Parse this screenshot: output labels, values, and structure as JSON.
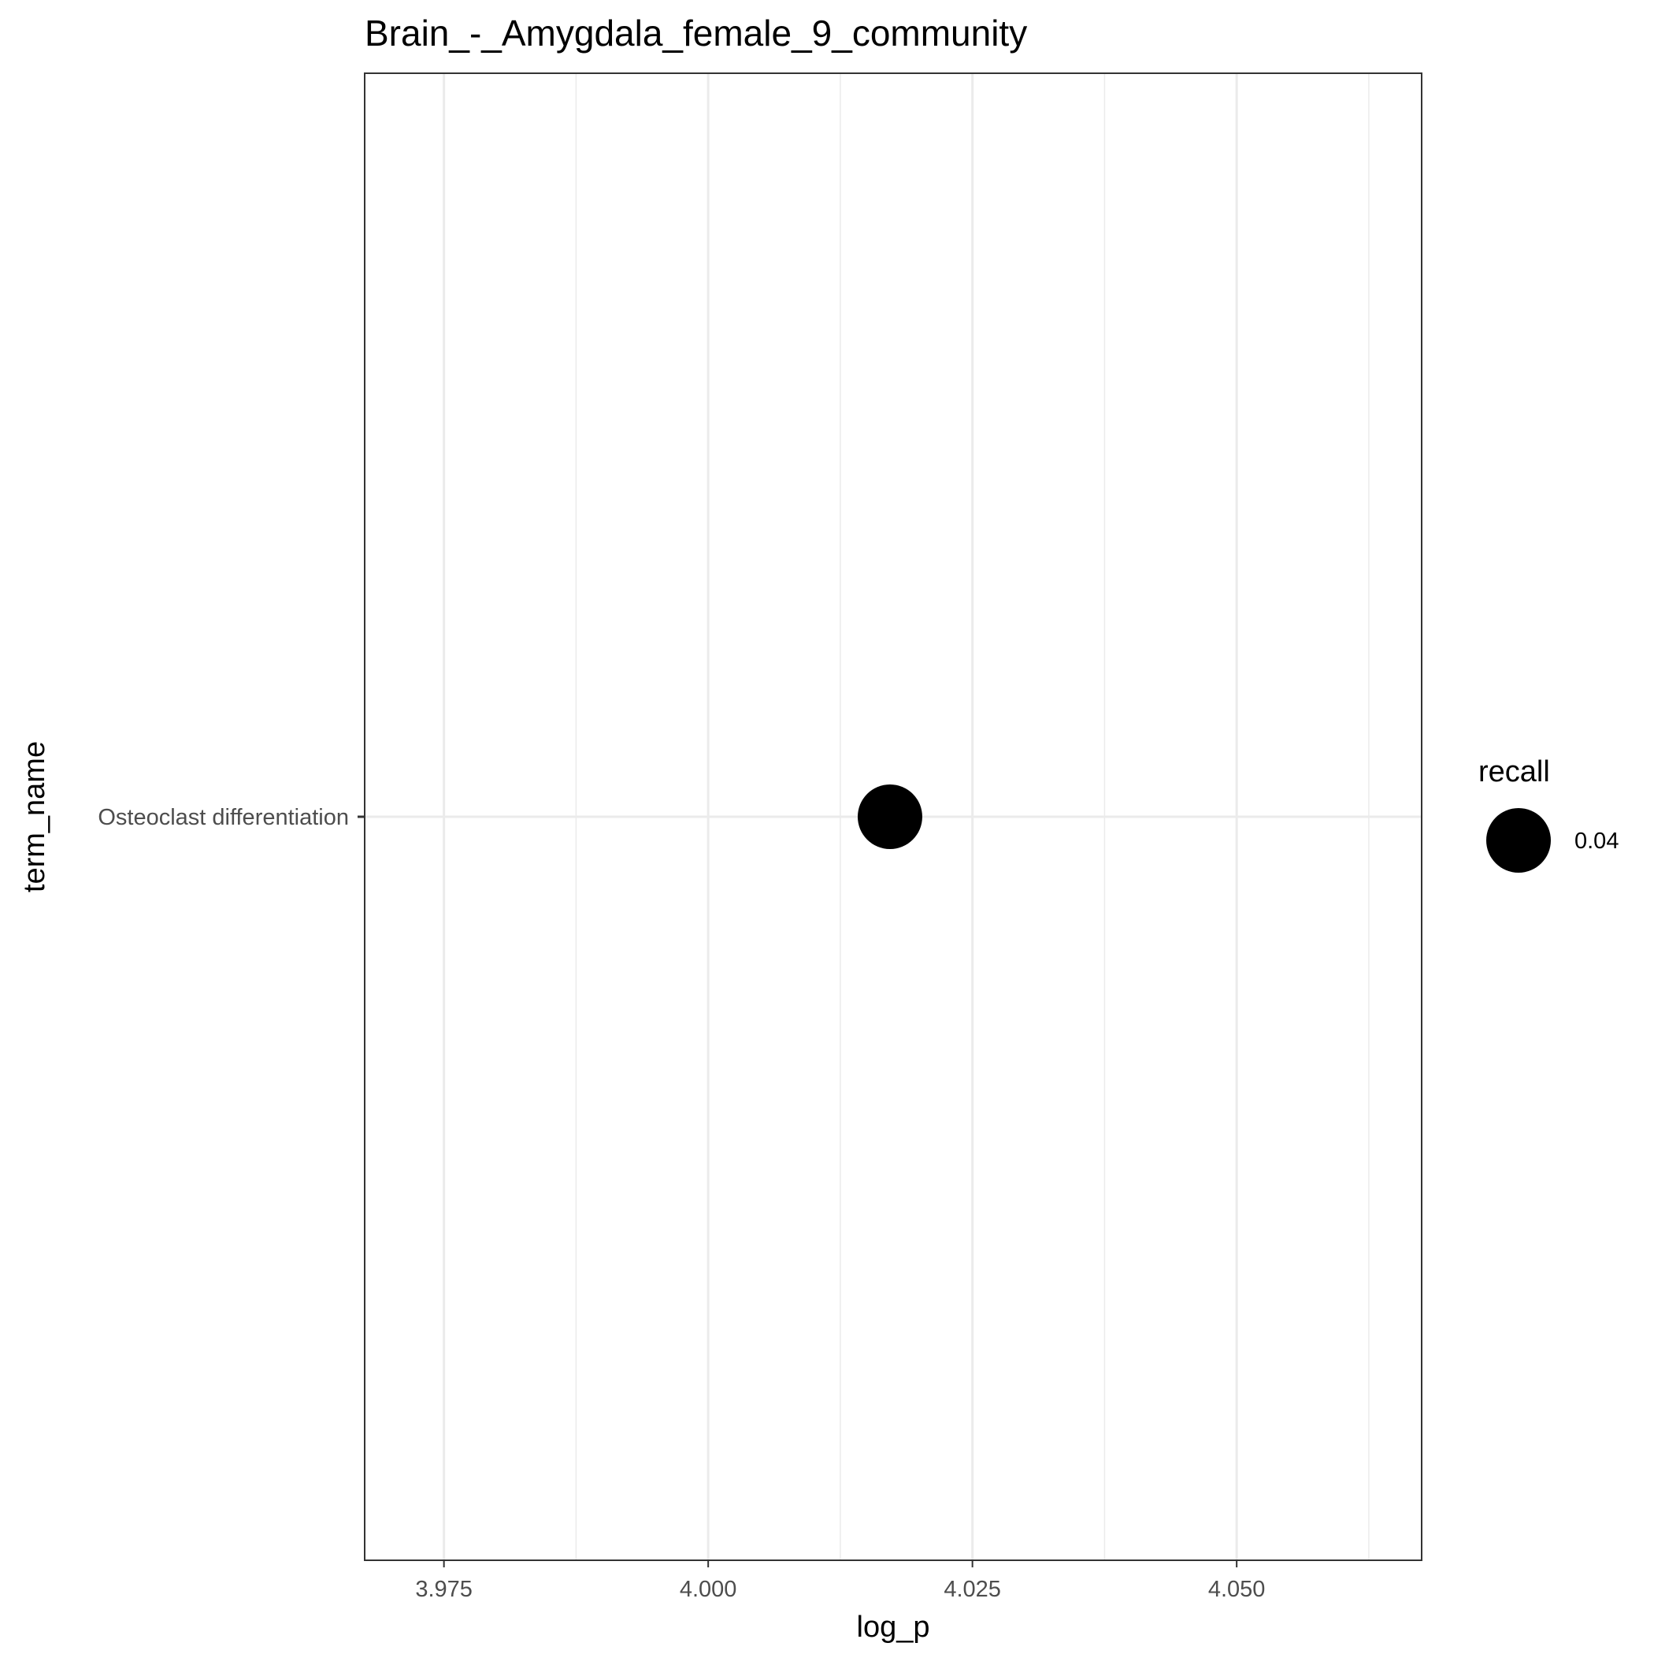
{
  "chart_data": {
    "type": "scatter",
    "title": "Brain_-_Amygdala_female_9_community",
    "xlabel": "log_p",
    "ylabel": "term_name",
    "xlim": [
      3.9675,
      4.0675
    ],
    "x_ticks": [
      3.975,
      4.0,
      4.025,
      4.05
    ],
    "x_tick_labels": [
      "3.975",
      "4.000",
      "4.025",
      "4.050"
    ],
    "x_minor_ticks": [
      3.9875,
      4.0125,
      4.0375,
      4.0625
    ],
    "categories": [
      "Osteoclast differentiation"
    ],
    "points": [
      {
        "term_name": "Osteoclast differentiation",
        "log_p": 4.0172,
        "recall": 0.04
      }
    ],
    "size_legend": {
      "title": "recall",
      "entries": [
        {
          "value": 0.04,
          "label": "0.04"
        }
      ]
    },
    "grid": true,
    "legend_position": "right",
    "colors": {
      "point": "#000000",
      "grid": "#ebebeb",
      "panel_border": "#333333",
      "tick_text": "#4d4d4d"
    }
  }
}
